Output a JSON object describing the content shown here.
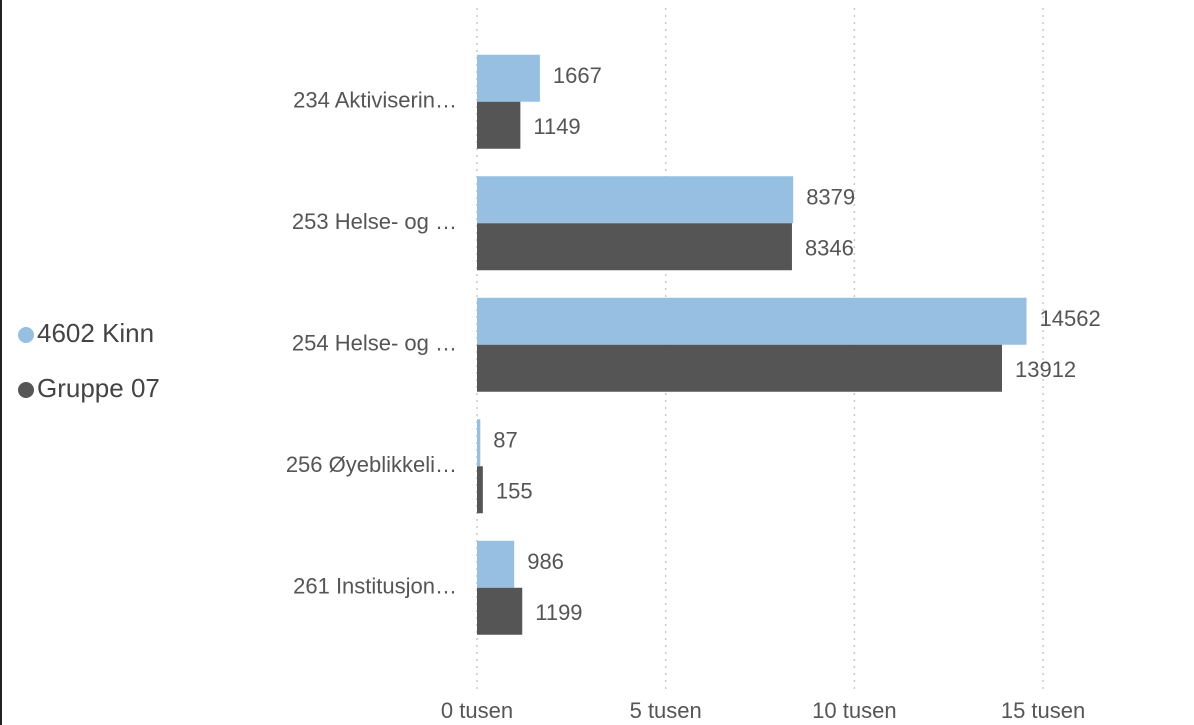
{
  "chart_data": {
    "type": "hbar",
    "categories": [
      "234 Aktiviserin…",
      "253 Helse- og …",
      "254 Helse- og …",
      "256 Øyeblikkeli…",
      "261 Institusjon…"
    ],
    "series": [
      {
        "name": "4602 Kinn",
        "color": "#96bfe2",
        "values": [
          1667,
          8379,
          14562,
          87,
          986
        ]
      },
      {
        "name": "Gruppe 07",
        "color": "#555555",
        "values": [
          1149,
          8346,
          13912,
          155,
          1199
        ]
      }
    ],
    "xlim": [
      0,
      19000
    ],
    "xticks": [
      {
        "value": 0,
        "label": "0 tusen"
      },
      {
        "value": 5000,
        "label": "5 tusen"
      },
      {
        "value": 10000,
        "label": "10 tusen"
      },
      {
        "value": 15000,
        "label": "15 tusen"
      }
    ],
    "grid": true,
    "legend": "left"
  }
}
